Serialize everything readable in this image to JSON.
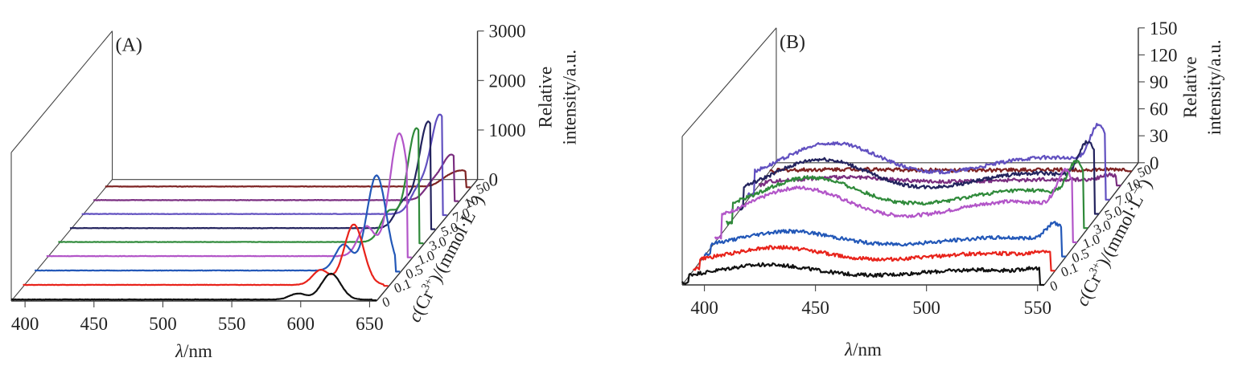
{
  "chart_data": [
    {
      "type": "line",
      "panel_label": "(A)",
      "xlabel_italic": "λ",
      "xlabel_rest": "/nm",
      "x_ticks": [
        400,
        450,
        500,
        550,
        600,
        650
      ],
      "xlim": [
        390,
        655
      ],
      "zlabel_line1": "Relative",
      "zlabel_line2": "intensity/a.u.",
      "z_ticks": [
        0,
        1000,
        2000,
        3000
      ],
      "zlim": [
        0,
        3000
      ],
      "depth_label_parts": [
        "c",
        "(Cr",
        "3+",
        ")/(mmol·L",
        "−1",
        ")"
      ],
      "depth_ticks": [
        "0",
        "0.1",
        "0.5",
        "1.0",
        "3.0",
        "5.0",
        "7.0",
        "10",
        "50"
      ],
      "series": [
        {
          "name": "0",
          "color": "#111111",
          "peaks": [
            [
              598,
              6,
              120
            ],
            [
              622,
              7,
              520
            ]
          ],
          "base": 30
        },
        {
          "name": "0.1",
          "color": "#e8231b",
          "peaks": [
            [
              606,
              6,
              300
            ],
            [
              630,
              7,
              1220
            ]
          ],
          "base": 40
        },
        {
          "name": "0.5",
          "color": "#2358b8",
          "peaks": [
            [
              614,
              6,
              520
            ],
            [
              638,
              7,
              1920
            ]
          ],
          "base": 45
        },
        {
          "name": "1.0",
          "color": "#b255c8",
          "peaks": [
            [
              622,
              6,
              600
            ],
            [
              646,
              7,
              2480
            ]
          ],
          "base": 50
        },
        {
          "name": "3.0",
          "color": "#2f8a3a",
          "peaks": [
            [
              630,
              6,
              600
            ],
            [
              650,
              7,
              2300
            ]
          ],
          "base": 50
        },
        {
          "name": "5.0",
          "color": "#23235e",
          "peaks": [
            [
              632,
              6,
              500
            ],
            [
              650,
              7,
              2150
            ]
          ],
          "base": 45
        },
        {
          "name": "7.0",
          "color": "#6150c0",
          "peaks": [
            [
              634,
              6,
              450
            ],
            [
              650,
              7,
              2000
            ]
          ],
          "base": 45
        },
        {
          "name": "10",
          "color": "#7a2e80",
          "peaks": [
            [
              636,
              6,
              300
            ],
            [
              650,
              7,
              900
            ]
          ],
          "base": 40
        },
        {
          "name": "50",
          "color": "#7d2222",
          "peaks": [
            [
              638,
              6,
              150
            ],
            [
              650,
              7,
              300
            ]
          ],
          "base": 30
        }
      ]
    },
    {
      "type": "line",
      "panel_label": "(B)",
      "xlabel_italic": "λ",
      "xlabel_rest": "/nm",
      "x_ticks": [
        400,
        450,
        500,
        550
      ],
      "xlim": [
        390,
        553
      ],
      "zlabel_line1": "Relative",
      "zlabel_line2": "intensity/a.u.",
      "z_ticks": [
        0,
        30,
        60,
        90,
        120,
        150
      ],
      "zlim": [
        0,
        150
      ],
      "depth_label_parts": [
        "c",
        "(Cr",
        "3+",
        ")/(mmol·L",
        "−1",
        ")"
      ],
      "depth_ticks": [
        "0",
        "0.1",
        "0.5",
        "1.0",
        "3.0",
        "5.0",
        "7.0",
        "10",
        "50"
      ],
      "series": [
        {
          "name": "0",
          "color": "#111111",
          "level": 1.0
        },
        {
          "name": "0.1",
          "color": "#e8231b",
          "level": 1.15
        },
        {
          "name": "0.5",
          "color": "#2358b8",
          "level": 1.25
        },
        {
          "name": "1.0",
          "color": "#b255c8",
          "level": 2.7
        },
        {
          "name": "3.0",
          "color": "#2f8a3a",
          "level": 2.5
        },
        {
          "name": "5.0",
          "color": "#23235e",
          "level": 2.7
        },
        {
          "name": "7.0",
          "color": "#6150c0",
          "level": 2.8
        },
        {
          "name": "10",
          "color": "#7a2e80",
          "level": 0.4
        },
        {
          "name": "50",
          "color": "#7d2222",
          "level": 0.1
        }
      ]
    }
  ]
}
